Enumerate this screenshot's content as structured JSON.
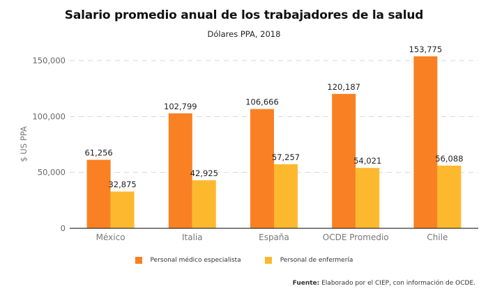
{
  "chart_data": {
    "type": "bar",
    "title": "Salario promedio anual de los trabajadores de la salud",
    "subtitle": "Dólares PPA, 2018",
    "xlabel": "",
    "ylabel": "$ US PPA",
    "ylim": [
      0,
      150000
    ],
    "yticks": [
      0,
      50000,
      100000,
      150000
    ],
    "ytick_labels": [
      "0",
      "50,000",
      "100,000",
      "150,000"
    ],
    "grid": true,
    "categories": [
      "México",
      "Italia",
      "España",
      "OCDE Promedio",
      "Chile"
    ],
    "series": [
      {
        "name": "Personal médico especialista",
        "color": "#F98123",
        "values": [
          61256,
          102799,
          106666,
          120187,
          153775
        ],
        "labels": [
          "61,256",
          "102,799",
          "106,666",
          "120,187",
          "153,775"
        ]
      },
      {
        "name": "Personal de enfermería",
        "color": "#FDB92E",
        "values": [
          32875,
          42925,
          57257,
          54021,
          56088
        ],
        "labels": [
          "32,875",
          "42,925",
          "57,257",
          "54,021",
          "56,088"
        ]
      }
    ],
    "legend_position": "bottom",
    "source_label": "Fuente:",
    "source_text": "Elaborado por el CIEP, con información de OCDE."
  }
}
